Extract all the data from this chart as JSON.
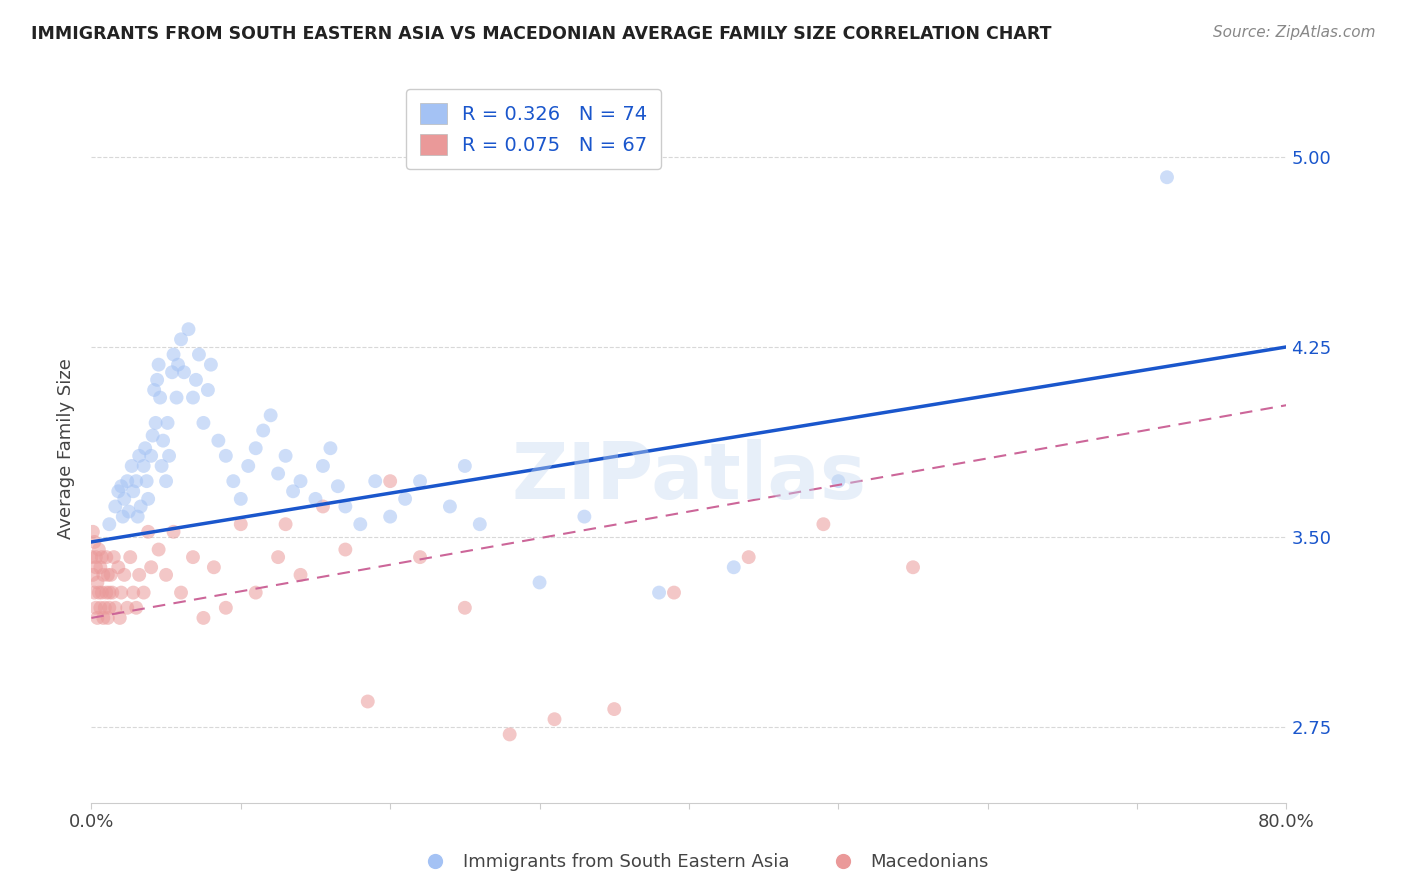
{
  "title": "IMMIGRANTS FROM SOUTH EASTERN ASIA VS MACEDONIAN AVERAGE FAMILY SIZE CORRELATION CHART",
  "source": "Source: ZipAtlas.com",
  "ylabel": "Average Family Size",
  "xlim": [
    0.0,
    0.8
  ],
  "ylim": [
    2.45,
    5.25
  ],
  "yticks": [
    2.75,
    3.5,
    4.25,
    5.0
  ],
  "xticks": [
    0.0,
    0.1,
    0.2,
    0.3,
    0.4,
    0.5,
    0.6,
    0.7,
    0.8
  ],
  "xticklabels": [
    "0.0%",
    "",
    "",
    "",
    "",
    "",
    "",
    "",
    "80.0%"
  ],
  "background_color": "#ffffff",
  "grid_color": "#d8d8d8",
  "legend1_label": "Immigrants from South Eastern Asia",
  "legend2_label": "Macedonians",
  "R1": 0.326,
  "N1": 74,
  "R2": 0.075,
  "N2": 67,
  "blue_color": "#a4c2f4",
  "pink_color": "#ea9999",
  "blue_line_color": "#1a56cc",
  "pink_line_color": "#cc6699",
  "watermark": "ZIPatlas",
  "blue_trend_x0": 0.0,
  "blue_trend_y0": 3.48,
  "blue_trend_x1": 0.8,
  "blue_trend_y1": 4.25,
  "pink_trend_x0": 0.0,
  "pink_trend_y0": 3.18,
  "pink_trend_x1": 0.8,
  "pink_trend_y1": 4.02,
  "blue_x": [
    0.012,
    0.016,
    0.018,
    0.02,
    0.021,
    0.022,
    0.024,
    0.025,
    0.027,
    0.028,
    0.03,
    0.031,
    0.032,
    0.033,
    0.035,
    0.036,
    0.037,
    0.038,
    0.04,
    0.041,
    0.042,
    0.043,
    0.044,
    0.045,
    0.046,
    0.047,
    0.048,
    0.05,
    0.051,
    0.052,
    0.054,
    0.055,
    0.057,
    0.058,
    0.06,
    0.062,
    0.065,
    0.068,
    0.07,
    0.072,
    0.075,
    0.078,
    0.08,
    0.085,
    0.09,
    0.095,
    0.1,
    0.105,
    0.11,
    0.115,
    0.12,
    0.125,
    0.13,
    0.135,
    0.14,
    0.15,
    0.155,
    0.16,
    0.165,
    0.17,
    0.18,
    0.19,
    0.2,
    0.21,
    0.22,
    0.24,
    0.25,
    0.26,
    0.3,
    0.33,
    0.38,
    0.43,
    0.5,
    0.72
  ],
  "blue_y": [
    3.55,
    3.62,
    3.68,
    3.7,
    3.58,
    3.65,
    3.72,
    3.6,
    3.78,
    3.68,
    3.72,
    3.58,
    3.82,
    3.62,
    3.78,
    3.85,
    3.72,
    3.65,
    3.82,
    3.9,
    4.08,
    3.95,
    4.12,
    4.18,
    4.05,
    3.78,
    3.88,
    3.72,
    3.95,
    3.82,
    4.15,
    4.22,
    4.05,
    4.18,
    4.28,
    4.15,
    4.32,
    4.05,
    4.12,
    4.22,
    3.95,
    4.08,
    4.18,
    3.88,
    3.82,
    3.72,
    3.65,
    3.78,
    3.85,
    3.92,
    3.98,
    3.75,
    3.82,
    3.68,
    3.72,
    3.65,
    3.78,
    3.85,
    3.7,
    3.62,
    3.55,
    3.72,
    3.58,
    3.65,
    3.72,
    3.62,
    3.78,
    3.55,
    3.32,
    3.58,
    3.28,
    3.38,
    3.72,
    4.92
  ],
  "pink_x": [
    0.0,
    0.001,
    0.001,
    0.002,
    0.002,
    0.003,
    0.003,
    0.003,
    0.004,
    0.004,
    0.005,
    0.005,
    0.006,
    0.006,
    0.007,
    0.007,
    0.008,
    0.008,
    0.009,
    0.01,
    0.01,
    0.011,
    0.011,
    0.012,
    0.012,
    0.013,
    0.014,
    0.015,
    0.016,
    0.018,
    0.019,
    0.02,
    0.022,
    0.024,
    0.026,
    0.028,
    0.03,
    0.032,
    0.035,
    0.038,
    0.04,
    0.045,
    0.05,
    0.055,
    0.06,
    0.068,
    0.075,
    0.082,
    0.09,
    0.1,
    0.11,
    0.125,
    0.13,
    0.14,
    0.155,
    0.17,
    0.185,
    0.2,
    0.22,
    0.25,
    0.28,
    0.31,
    0.35,
    0.39,
    0.44,
    0.49,
    0.55
  ],
  "pink_y": [
    3.42,
    3.52,
    3.35,
    3.48,
    3.28,
    3.42,
    3.22,
    3.38,
    3.32,
    3.18,
    3.28,
    3.45,
    3.22,
    3.38,
    3.28,
    3.42,
    3.18,
    3.35,
    3.22,
    3.42,
    3.28,
    3.18,
    3.35,
    3.28,
    3.22,
    3.35,
    3.28,
    3.42,
    3.22,
    3.38,
    3.18,
    3.28,
    3.35,
    3.22,
    3.42,
    3.28,
    3.22,
    3.35,
    3.28,
    3.52,
    3.38,
    3.45,
    3.35,
    3.52,
    3.28,
    3.42,
    3.18,
    3.38,
    3.22,
    3.55,
    3.28,
    3.42,
    3.55,
    3.35,
    3.62,
    3.45,
    2.85,
    3.72,
    3.42,
    3.22,
    2.72,
    2.78,
    2.82,
    3.28,
    3.42,
    3.55,
    3.38
  ]
}
